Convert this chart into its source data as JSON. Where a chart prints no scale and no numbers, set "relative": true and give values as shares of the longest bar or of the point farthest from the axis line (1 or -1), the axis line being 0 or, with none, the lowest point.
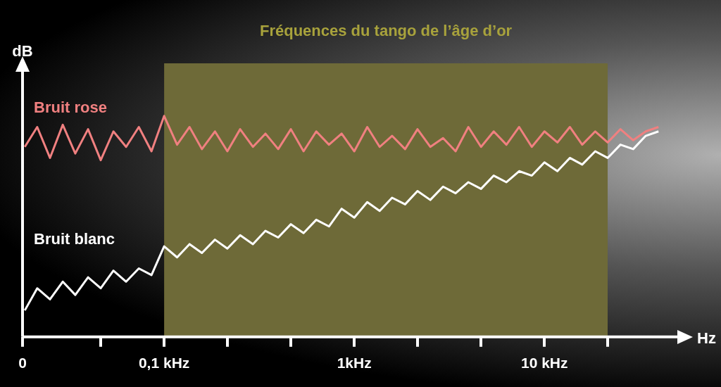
{
  "chart_data": {
    "type": "line",
    "relative": true,
    "log": "x",
    "xlabel": "Hz",
    "ylabel": "dB",
    "xlim": [
      0.018,
      50
    ],
    "xticks": [
      {
        "value": 0.018,
        "label": "0"
      },
      {
        "value": 0.0464,
        "label": null
      },
      {
        "value": 0.1,
        "label": "0,1 kHz"
      },
      {
        "value": 0.215,
        "label": null
      },
      {
        "value": 0.464,
        "label": null
      },
      {
        "value": 1,
        "label": "1kHz"
      },
      {
        "value": 2.15,
        "label": null
      },
      {
        "value": 4.64,
        "label": null
      },
      {
        "value": 10,
        "label": "10 kHz"
      },
      {
        "value": 21.5,
        "label": null
      }
    ],
    "x": [
      0.0185,
      0.0215,
      0.0251,
      0.0293,
      0.0341,
      0.0398,
      0.0464,
      0.0541,
      0.0631,
      0.0736,
      0.0858,
      0.1,
      0.117,
      0.136,
      0.158,
      0.185,
      0.215,
      0.251,
      0.293,
      0.341,
      0.398,
      0.464,
      0.541,
      0.631,
      0.736,
      0.858,
      1,
      1.17,
      1.36,
      1.58,
      1.85,
      2.15,
      2.51,
      2.93,
      3.41,
      3.98,
      4.64,
      5.41,
      6.31,
      7.36,
      8.58,
      10,
      11.7,
      13.6,
      15.8,
      18.5,
      21.5,
      25.1,
      29.3,
      34.1,
      39.8
    ],
    "series": [
      {
        "name": "Bruit rose",
        "color": "#f08080",
        "values": [
          0.86,
          0.95,
          0.81,
          0.96,
          0.83,
          0.94,
          0.8,
          0.93,
          0.86,
          0.95,
          0.84,
          1.0,
          0.87,
          0.95,
          0.85,
          0.93,
          0.84,
          0.94,
          0.86,
          0.92,
          0.85,
          0.94,
          0.84,
          0.93,
          0.87,
          0.92,
          0.84,
          0.95,
          0.86,
          0.91,
          0.85,
          0.94,
          0.86,
          0.9,
          0.84,
          0.95,
          0.86,
          0.93,
          0.87,
          0.95,
          0.86,
          0.93,
          0.88,
          0.95,
          0.87,
          0.93,
          0.88,
          0.94,
          0.89,
          0.93,
          0.95
        ]
      },
      {
        "name": "Bruit blanc",
        "color": "#ffffff",
        "values": [
          0.12,
          0.22,
          0.17,
          0.25,
          0.19,
          0.27,
          0.22,
          0.3,
          0.25,
          0.31,
          0.28,
          0.41,
          0.36,
          0.42,
          0.38,
          0.44,
          0.4,
          0.46,
          0.42,
          0.48,
          0.45,
          0.51,
          0.47,
          0.53,
          0.5,
          0.58,
          0.54,
          0.61,
          0.57,
          0.63,
          0.6,
          0.66,
          0.62,
          0.68,
          0.65,
          0.7,
          0.67,
          0.73,
          0.7,
          0.75,
          0.73,
          0.79,
          0.75,
          0.81,
          0.78,
          0.84,
          0.81,
          0.87,
          0.85,
          0.91,
          0.93
        ]
      }
    ],
    "bands": [
      {
        "axis": "x",
        "from": 0.1,
        "to": 21.5,
        "label": "Fréquences du tango de l’âge d’or",
        "color": "#6e6a38"
      }
    ],
    "grid": false,
    "legend": false,
    "marker": "none",
    "line_style": "solid"
  }
}
